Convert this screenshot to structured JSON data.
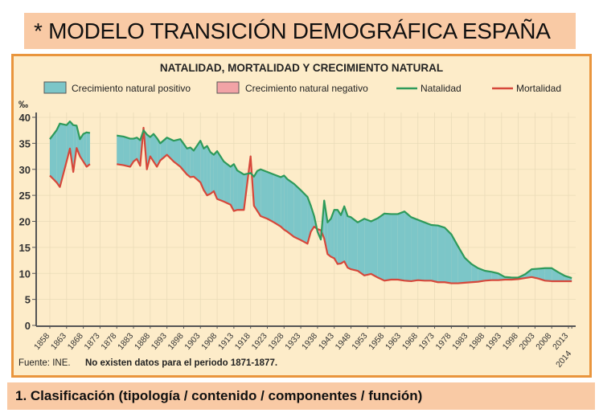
{
  "header": {
    "title": "* MODELO TRANSICIÓN DEMOGRÁFICA ESPAÑA"
  },
  "footer_bar": {
    "text": "1. Clasificación (tipología / contenido / componentes / función)"
  },
  "colors": {
    "positive_fill": "#7cc6c8",
    "negative_fill": "#f2a3a6",
    "natalidad": "#2e9a5a",
    "mortalidad": "#d6473a",
    "frame_border": "#e9953d",
    "frame_bg": "#fdecc9",
    "bar_bg": "#f9caa5"
  },
  "chart_data": {
    "type": "area",
    "title": "NATALIDAD, MORTALIDAD Y CRECIMIENTO NATURAL",
    "ylabel": "‰",
    "xlabel": "",
    "ylim": [
      0,
      40
    ],
    "yticks": [
      0,
      5,
      10,
      15,
      20,
      25,
      30,
      35,
      40
    ],
    "xlim": [
      1858,
      2014
    ],
    "xticks": [
      "1858",
      "1863",
      "1868",
      "1873",
      "1878",
      "1883",
      "1888",
      "1893",
      "1898",
      "1903",
      "1908",
      "1913",
      "1918",
      "1923",
      "1928",
      "1933",
      "1938",
      "1943",
      "1948",
      "1953",
      "1958",
      "1963",
      "1968",
      "1973",
      "1978",
      "1983",
      "1988",
      "1993",
      "1998",
      "2003",
      "2008",
      "2013",
      "2014"
    ],
    "grid": true,
    "legend": {
      "placement": "top",
      "entries": [
        {
          "label": "Crecimiento natural positivo",
          "kind": "swatch",
          "color_key": "positive_fill"
        },
        {
          "label": "Crecimiento natural negativo",
          "kind": "swatch",
          "color_key": "negative_fill"
        },
        {
          "label": "Natalidad",
          "kind": "line",
          "color_key": "natalidad"
        },
        {
          "label": "Mortalidad",
          "kind": "line",
          "color_key": "mortalidad"
        }
      ]
    },
    "source_note": "Fuente: INE.",
    "gap_note": "No existen datos para el periodo 1871-1877.",
    "segments": [
      {
        "years": [
          1858,
          1860,
          1861,
          1863,
          1864,
          1865,
          1866,
          1867,
          1868,
          1869,
          1870
        ],
        "natalidad": [
          35.8,
          37.5,
          38.8,
          38.5,
          39.2,
          38.5,
          38.4,
          35.8,
          36.8,
          37.1,
          37.0
        ],
        "mortalidad": [
          28.8,
          27.5,
          26.6,
          31.5,
          34.0,
          29.5,
          34.1,
          32.5,
          31.5,
          30.5,
          31.0
        ]
      },
      {
        "years": [
          1878,
          1880,
          1882,
          1883,
          1884,
          1885,
          1886,
          1887,
          1888,
          1889,
          1890,
          1891,
          1893,
          1895,
          1897,
          1899,
          1900,
          1901,
          1903,
          1904,
          1905,
          1906,
          1907,
          1908,
          1910,
          1912,
          1913,
          1914,
          1916,
          1918,
          1919,
          1920,
          1921,
          1923,
          1925,
          1927,
          1928,
          1929,
          1931,
          1933,
          1935,
          1936,
          1937,
          1938,
          1939,
          1940,
          1941,
          1942,
          1943,
          1944,
          1945,
          1946,
          1947,
          1948,
          1950,
          1952,
          1954,
          1956,
          1958,
          1960,
          1962,
          1964,
          1966,
          1968,
          1970,
          1972,
          1974,
          1976,
          1978,
          1980,
          1982,
          1984,
          1986,
          1988,
          1990,
          1992,
          1994,
          1996,
          1998,
          2000,
          2002,
          2004,
          2006,
          2008,
          2010,
          2012,
          2014
        ],
        "natalidad": [
          36.5,
          36.3,
          35.9,
          35.9,
          36.1,
          35.6,
          37.5,
          36.7,
          36.2,
          36.8,
          36.0,
          35.0,
          36.1,
          35.5,
          35.8,
          34.0,
          34.2,
          33.6,
          35.5,
          34.0,
          34.5,
          33.3,
          32.8,
          33.5,
          31.5,
          30.5,
          31.0,
          29.8,
          29.0,
          29.3,
          28.6,
          29.7,
          30.0,
          29.5,
          29.0,
          28.5,
          28.8,
          28.1,
          27.2,
          26.0,
          24.7,
          23.0,
          21.0,
          18.0,
          16.5,
          24.0,
          19.8,
          20.5,
          22.2,
          22.2,
          21.2,
          22.9,
          21.0,
          20.8,
          19.8,
          20.5,
          20.0,
          20.6,
          21.5,
          21.4,
          21.4,
          21.9,
          20.8,
          20.3,
          19.8,
          19.3,
          19.2,
          18.8,
          17.5,
          15.2,
          13.0,
          11.8,
          11.0,
          10.5,
          10.3,
          10.0,
          9.3,
          9.2,
          9.2,
          9.8,
          10.8,
          10.9,
          11.0,
          11.0,
          10.2,
          9.5,
          9.1
        ],
        "mortalidad": [
          31.0,
          30.8,
          30.5,
          31.5,
          32.0,
          30.7,
          38.0,
          30.0,
          32.5,
          31.5,
          30.5,
          31.7,
          32.8,
          31.5,
          30.5,
          29.0,
          28.5,
          28.6,
          27.5,
          26.0,
          25.0,
          25.3,
          25.8,
          24.3,
          23.8,
          23.2,
          22.0,
          22.2,
          22.2,
          32.5,
          23.0,
          22.0,
          21.0,
          20.5,
          19.8,
          19.0,
          18.4,
          18.0,
          17.0,
          16.4,
          15.7,
          18.0,
          19.0,
          18.5,
          18.3,
          16.7,
          13.7,
          13.2,
          12.9,
          11.8,
          11.9,
          12.3,
          11.1,
          10.8,
          10.5,
          9.6,
          9.9,
          9.2,
          8.6,
          8.8,
          8.8,
          8.6,
          8.5,
          8.7,
          8.6,
          8.6,
          8.3,
          8.3,
          8.1,
          8.1,
          8.2,
          8.3,
          8.4,
          8.6,
          8.7,
          8.7,
          8.8,
          8.8,
          8.9,
          9.1,
          9.3,
          9.0,
          8.6,
          8.5,
          8.5,
          8.5,
          8.5
        ]
      }
    ]
  }
}
